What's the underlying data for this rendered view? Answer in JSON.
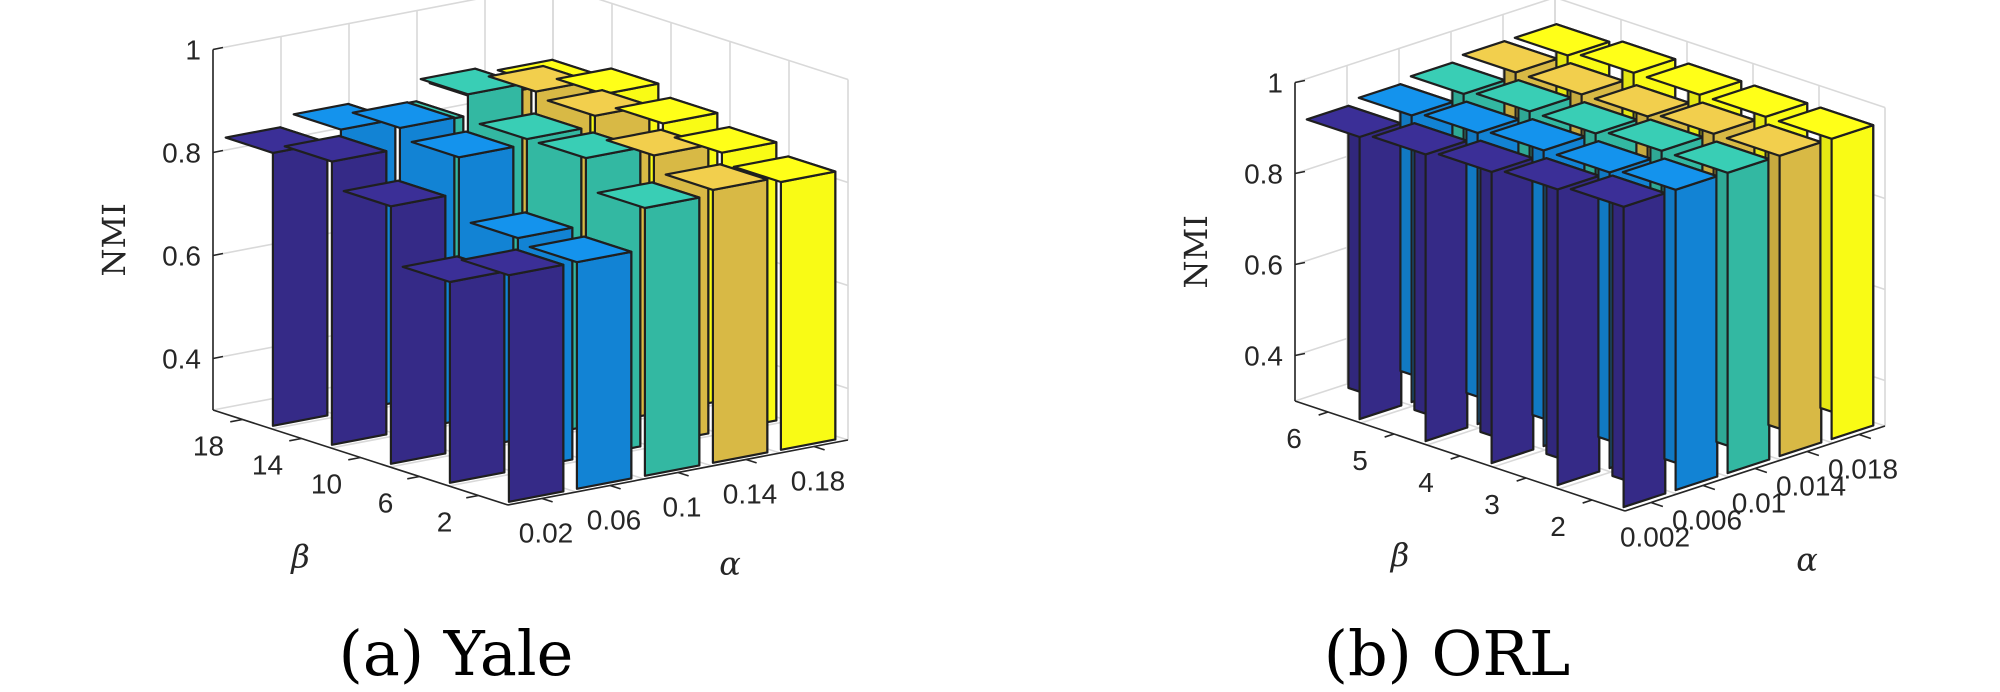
{
  "colors": {
    "alpha_series": [
      "#352a87",
      "#1283d4",
      "#33b8a2",
      "#d8b945",
      "#f9fb15"
    ]
  },
  "chart_data": [
    {
      "type": "bar3d",
      "caption": "(a)  Yale",
      "zlabel": "NMI",
      "xlabel": "β",
      "ylabel": "α",
      "beta": [
        "2",
        "6",
        "10",
        "14",
        "18"
      ],
      "alpha": [
        "0.02",
        "0.06",
        "0.1",
        "0.14",
        "0.18"
      ],
      "zlim": [
        0.3,
        1.0
      ],
      "zticks": [
        "0.4",
        "0.6",
        "0.8",
        "1"
      ],
      "values": [
        [
          0.74,
          0.69,
          0.8,
          0.85,
          0.83
        ],
        [
          0.74,
          0.75,
          0.87,
          0.89,
          0.85
        ],
        [
          0.82,
          0.88,
          0.88,
          0.93,
          0.83
        ],
        [
          0.83,
          0.86,
          0.9,
          0.91,
          0.86
        ],
        [
          0.82,
          0.84,
          0.86,
          0.88,
          0.86
        ]
      ]
    },
    {
      "type": "bar3d",
      "caption": "(b)  ORL",
      "zlabel": "NMI",
      "xlabel": "β",
      "ylabel": "α",
      "beta": [
        "2",
        "3",
        "4",
        "5",
        "6"
      ],
      "alpha": [
        "0.002",
        "0.006",
        "0.01",
        "0.014",
        "0.018"
      ],
      "zlim": [
        0.3,
        1.0
      ],
      "zticks": [
        "0.4",
        "0.6",
        "0.8",
        "1"
      ],
      "values": [
        [
          0.96,
          0.95,
          0.94,
          0.93,
          0.92
        ],
        [
          0.96,
          0.95,
          0.95,
          0.94,
          0.93
        ],
        [
          0.96,
          0.96,
          0.95,
          0.95,
          0.94
        ],
        [
          0.96,
          0.96,
          0.95,
          0.95,
          0.95
        ],
        [
          0.96,
          0.96,
          0.96,
          0.96,
          0.95
        ]
      ]
    }
  ]
}
